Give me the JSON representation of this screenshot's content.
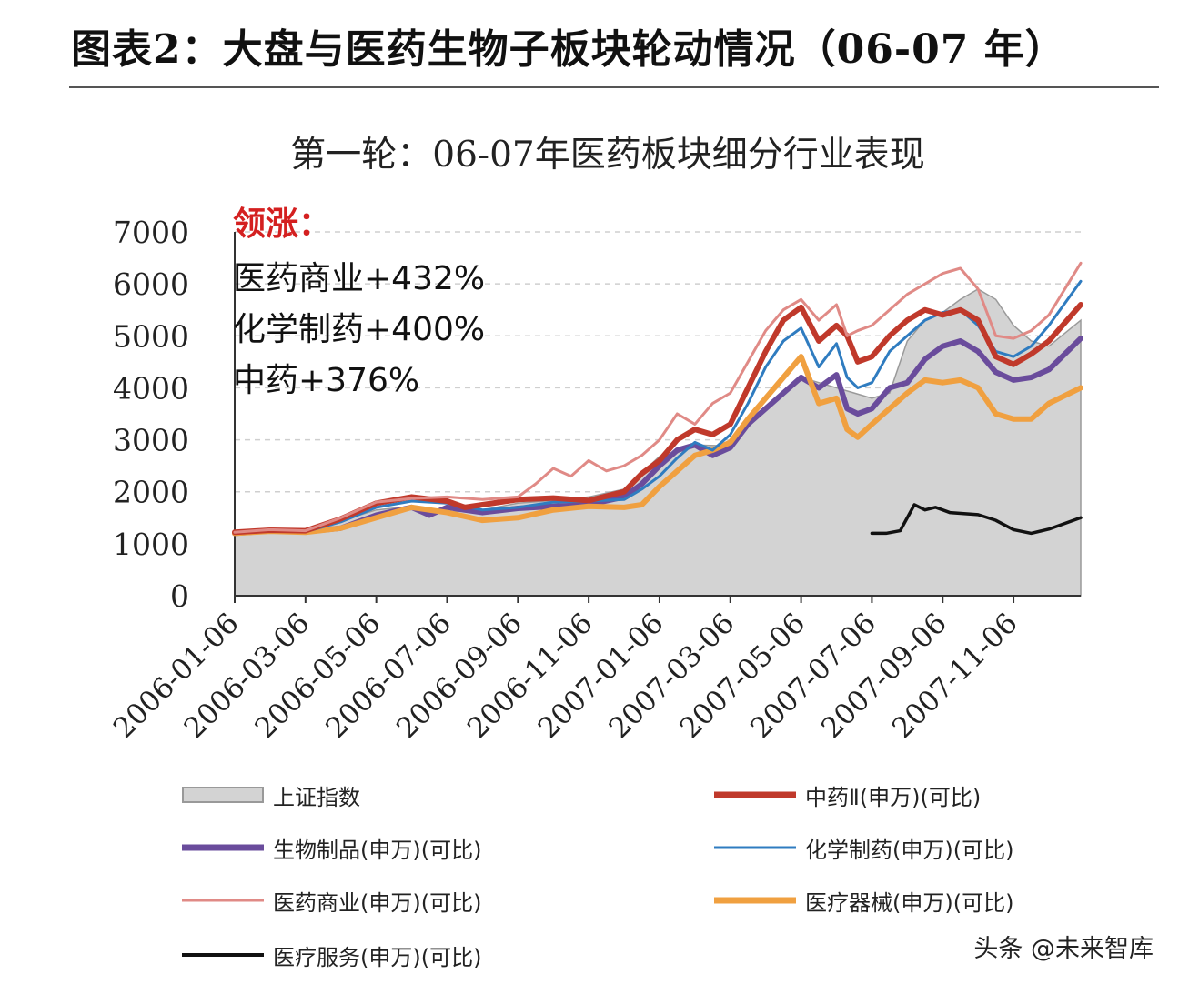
{
  "header": {
    "title": "图表2：大盘与医药生物子板块轮动情况（06-07 年）"
  },
  "chart_data": {
    "type": "line",
    "title": "第一轮：06-07年医药板块细分行业表现",
    "ylim": [
      0,
      7000
    ],
    "y_ticks": [
      "0",
      "1000",
      "2000",
      "3000",
      "4000",
      "5000",
      "6000",
      "7000"
    ],
    "x_tick_labels": [
      "2006-01-06",
      "2006-03-06",
      "2006-05-06",
      "2006-07-06",
      "2006-09-06",
      "2006-11-06",
      "2007-01-06",
      "2007-03-06",
      "2007-05-06",
      "2007-07-06",
      "2007-09-06",
      "2007-11-06"
    ],
    "x_months": [
      0,
      2,
      4,
      6,
      8,
      10,
      12,
      14,
      16,
      18,
      20,
      22
    ],
    "x_range": [
      0,
      23.9
    ],
    "grid": "horizontal dashed",
    "annotation": {
      "heading": "领涨：",
      "lines": [
        "医药商业+432%",
        "化学制药+400%",
        "中药+376%"
      ]
    },
    "series": [
      {
        "name": "上证指数",
        "style": "area",
        "color": "#d3d3d3",
        "stroke": "#9a9a9a",
        "x": [
          0,
          1,
          2,
          3,
          4,
          5,
          6,
          7,
          8,
          9,
          10,
          11,
          12,
          12.5,
          13,
          14,
          15,
          15.5,
          16,
          16.5,
          17,
          17.5,
          18,
          18.5,
          19,
          19.5,
          20,
          20.5,
          21,
          21.5,
          22,
          22.5,
          23,
          23.9
        ],
        "y": [
          1180,
          1250,
          1280,
          1440,
          1650,
          1720,
          1610,
          1650,
          1780,
          1830,
          1900,
          2050,
          2680,
          2750,
          2900,
          2880,
          3600,
          3860,
          4200,
          4100,
          4000,
          3900,
          3800,
          3900,
          4900,
          5300,
          5450,
          5700,
          5900,
          5700,
          5200,
          4900,
          4800,
          5300
        ]
      },
      {
        "name": "中药Ⅱ(申万)(可比)",
        "style": "line",
        "color": "#c0392b",
        "width": 6,
        "x": [
          0,
          1,
          2,
          3,
          4,
          5,
          6,
          6.5,
          7,
          8,
          9,
          10,
          11,
          11.5,
          12,
          12.5,
          13,
          13.5,
          14,
          14.5,
          15,
          15.5,
          16,
          16.5,
          17,
          17.3,
          17.6,
          18,
          18.5,
          19,
          19.5,
          20,
          20.5,
          21,
          21.5,
          22,
          22.5,
          23,
          23.9
        ],
        "y": [
          1220,
          1260,
          1250,
          1480,
          1780,
          1900,
          1820,
          1700,
          1750,
          1850,
          1880,
          1830,
          2000,
          2350,
          2600,
          3000,
          3200,
          3100,
          3300,
          4000,
          4700,
          5300,
          5550,
          4900,
          5200,
          5000,
          4500,
          4600,
          5000,
          5300,
          5500,
          5400,
          5500,
          5300,
          4600,
          4450,
          4650,
          4900,
          5600
        ]
      },
      {
        "name": "生物制品(申万)(可比)",
        "style": "line",
        "color": "#6a4c9c",
        "width": 6,
        "x": [
          0,
          1,
          2,
          3,
          4,
          5,
          5.5,
          6,
          7,
          8,
          9,
          10,
          11,
          11.5,
          12,
          12.5,
          13,
          13.5,
          14,
          14.5,
          15,
          15.5,
          16,
          16.5,
          17,
          17.3,
          17.6,
          18,
          18.5,
          19,
          19.5,
          20,
          20.5,
          21,
          21.5,
          22,
          22.5,
          23,
          23.9
        ],
        "y": [
          1200,
          1250,
          1230,
          1300,
          1550,
          1700,
          1550,
          1700,
          1600,
          1680,
          1720,
          1750,
          1900,
          2150,
          2500,
          2800,
          2900,
          2700,
          2850,
          3300,
          3600,
          3900,
          4200,
          4000,
          4250,
          3600,
          3500,
          3600,
          4000,
          4100,
          4550,
          4800,
          4900,
          4700,
          4300,
          4150,
          4200,
          4350,
          4950
        ]
      },
      {
        "name": "化学制药(申万)(可比)",
        "style": "line",
        "color": "#2f7cc0",
        "width": 3,
        "x": [
          0,
          1,
          2,
          3,
          4,
          5,
          6,
          7,
          8,
          9,
          10,
          11,
          11.5,
          12,
          12.5,
          13,
          13.5,
          14,
          14.5,
          15,
          15.5,
          16,
          16.5,
          17,
          17.3,
          17.6,
          18,
          18.5,
          19,
          19.5,
          20,
          20.5,
          21,
          21.5,
          22,
          22.5,
          23,
          23.9
        ],
        "y": [
          1220,
          1250,
          1230,
          1420,
          1700,
          1820,
          1780,
          1650,
          1700,
          1800,
          1820,
          1850,
          2050,
          2300,
          2650,
          2950,
          2800,
          3100,
          3700,
          4400,
          4900,
          5150,
          4400,
          4850,
          4200,
          4000,
          4100,
          4700,
          5000,
          5300,
          5450,
          5500,
          5200,
          4700,
          4600,
          4800,
          5200,
          6050
        ]
      },
      {
        "name": "医药商业(申万)(可比)",
        "style": "line",
        "color": "#e08a86",
        "width": 3,
        "x": [
          0,
          1,
          2,
          3,
          4,
          5,
          6,
          7,
          8,
          8.5,
          9,
          9.5,
          10,
          10.5,
          11,
          11.5,
          12,
          12.5,
          13,
          13.5,
          14,
          14.5,
          15,
          15.5,
          16,
          16.5,
          17,
          17.3,
          17.6,
          18,
          18.5,
          19,
          19.5,
          20,
          20.5,
          21,
          21.5,
          22,
          22.5,
          23,
          23.9
        ],
        "y": [
          1220,
          1270,
          1250,
          1500,
          1800,
          1870,
          1900,
          1850,
          1900,
          2150,
          2450,
          2300,
          2600,
          2400,
          2500,
          2700,
          3000,
          3500,
          3300,
          3700,
          3900,
          4500,
          5100,
          5500,
          5700,
          5300,
          5600,
          5000,
          5100,
          5200,
          5500,
          5800,
          6000,
          6200,
          6300,
          5900,
          5000,
          4950,
          5100,
          5400,
          6400
        ]
      },
      {
        "name": "医疗器械(申万)(可比)",
        "style": "line",
        "color": "#f0a040",
        "width": 6,
        "x": [
          0,
          1,
          2,
          3,
          4,
          5,
          6,
          7,
          8,
          9,
          10,
          11,
          11.5,
          12,
          12.5,
          13,
          13.5,
          14,
          14.5,
          15,
          15.5,
          16,
          16.5,
          17,
          17.3,
          17.6,
          18,
          18.5,
          19,
          19.5,
          20,
          20.5,
          21,
          21.5,
          22,
          22.5,
          23,
          23.9
        ],
        "y": [
          1200,
          1240,
          1220,
          1300,
          1500,
          1700,
          1600,
          1450,
          1500,
          1650,
          1720,
          1700,
          1750,
          2100,
          2400,
          2700,
          2800,
          2950,
          3400,
          3800,
          4200,
          4600,
          3700,
          3800,
          3200,
          3050,
          3300,
          3600,
          3900,
          4150,
          4100,
          4150,
          4000,
          3500,
          3400,
          3400,
          3700,
          4000
        ]
      },
      {
        "name": "医疗服务(申万)(可比)",
        "style": "line",
        "color": "#111111",
        "width": 3.5,
        "x": [
          18,
          18.4,
          18.8,
          19.2,
          19.5,
          19.8,
          20.2,
          20.6,
          21,
          21.5,
          22,
          22.5,
          23,
          23.9
        ],
        "y": [
          1200,
          1200,
          1250,
          1750,
          1650,
          1700,
          1600,
          1580,
          1560,
          1450,
          1270,
          1200,
          1280,
          1500
        ]
      }
    ]
  },
  "legend": [
    {
      "label": "上证指数",
      "key": "area"
    },
    {
      "label": "中药Ⅱ(申万)(可比)",
      "key": "line"
    },
    {
      "label": "生物制品(申万)(可比)",
      "key": "line"
    },
    {
      "label": "化学制药(申万)(可比)",
      "key": "line"
    },
    {
      "label": "医药商业(申万)(可比)",
      "key": "line"
    },
    {
      "label": "医疗器械(申万)(可比)",
      "key": "line"
    },
    {
      "label": "医疗服务(申万)(可比)",
      "key": "line"
    }
  ],
  "watermark": "头条 @未来智库"
}
